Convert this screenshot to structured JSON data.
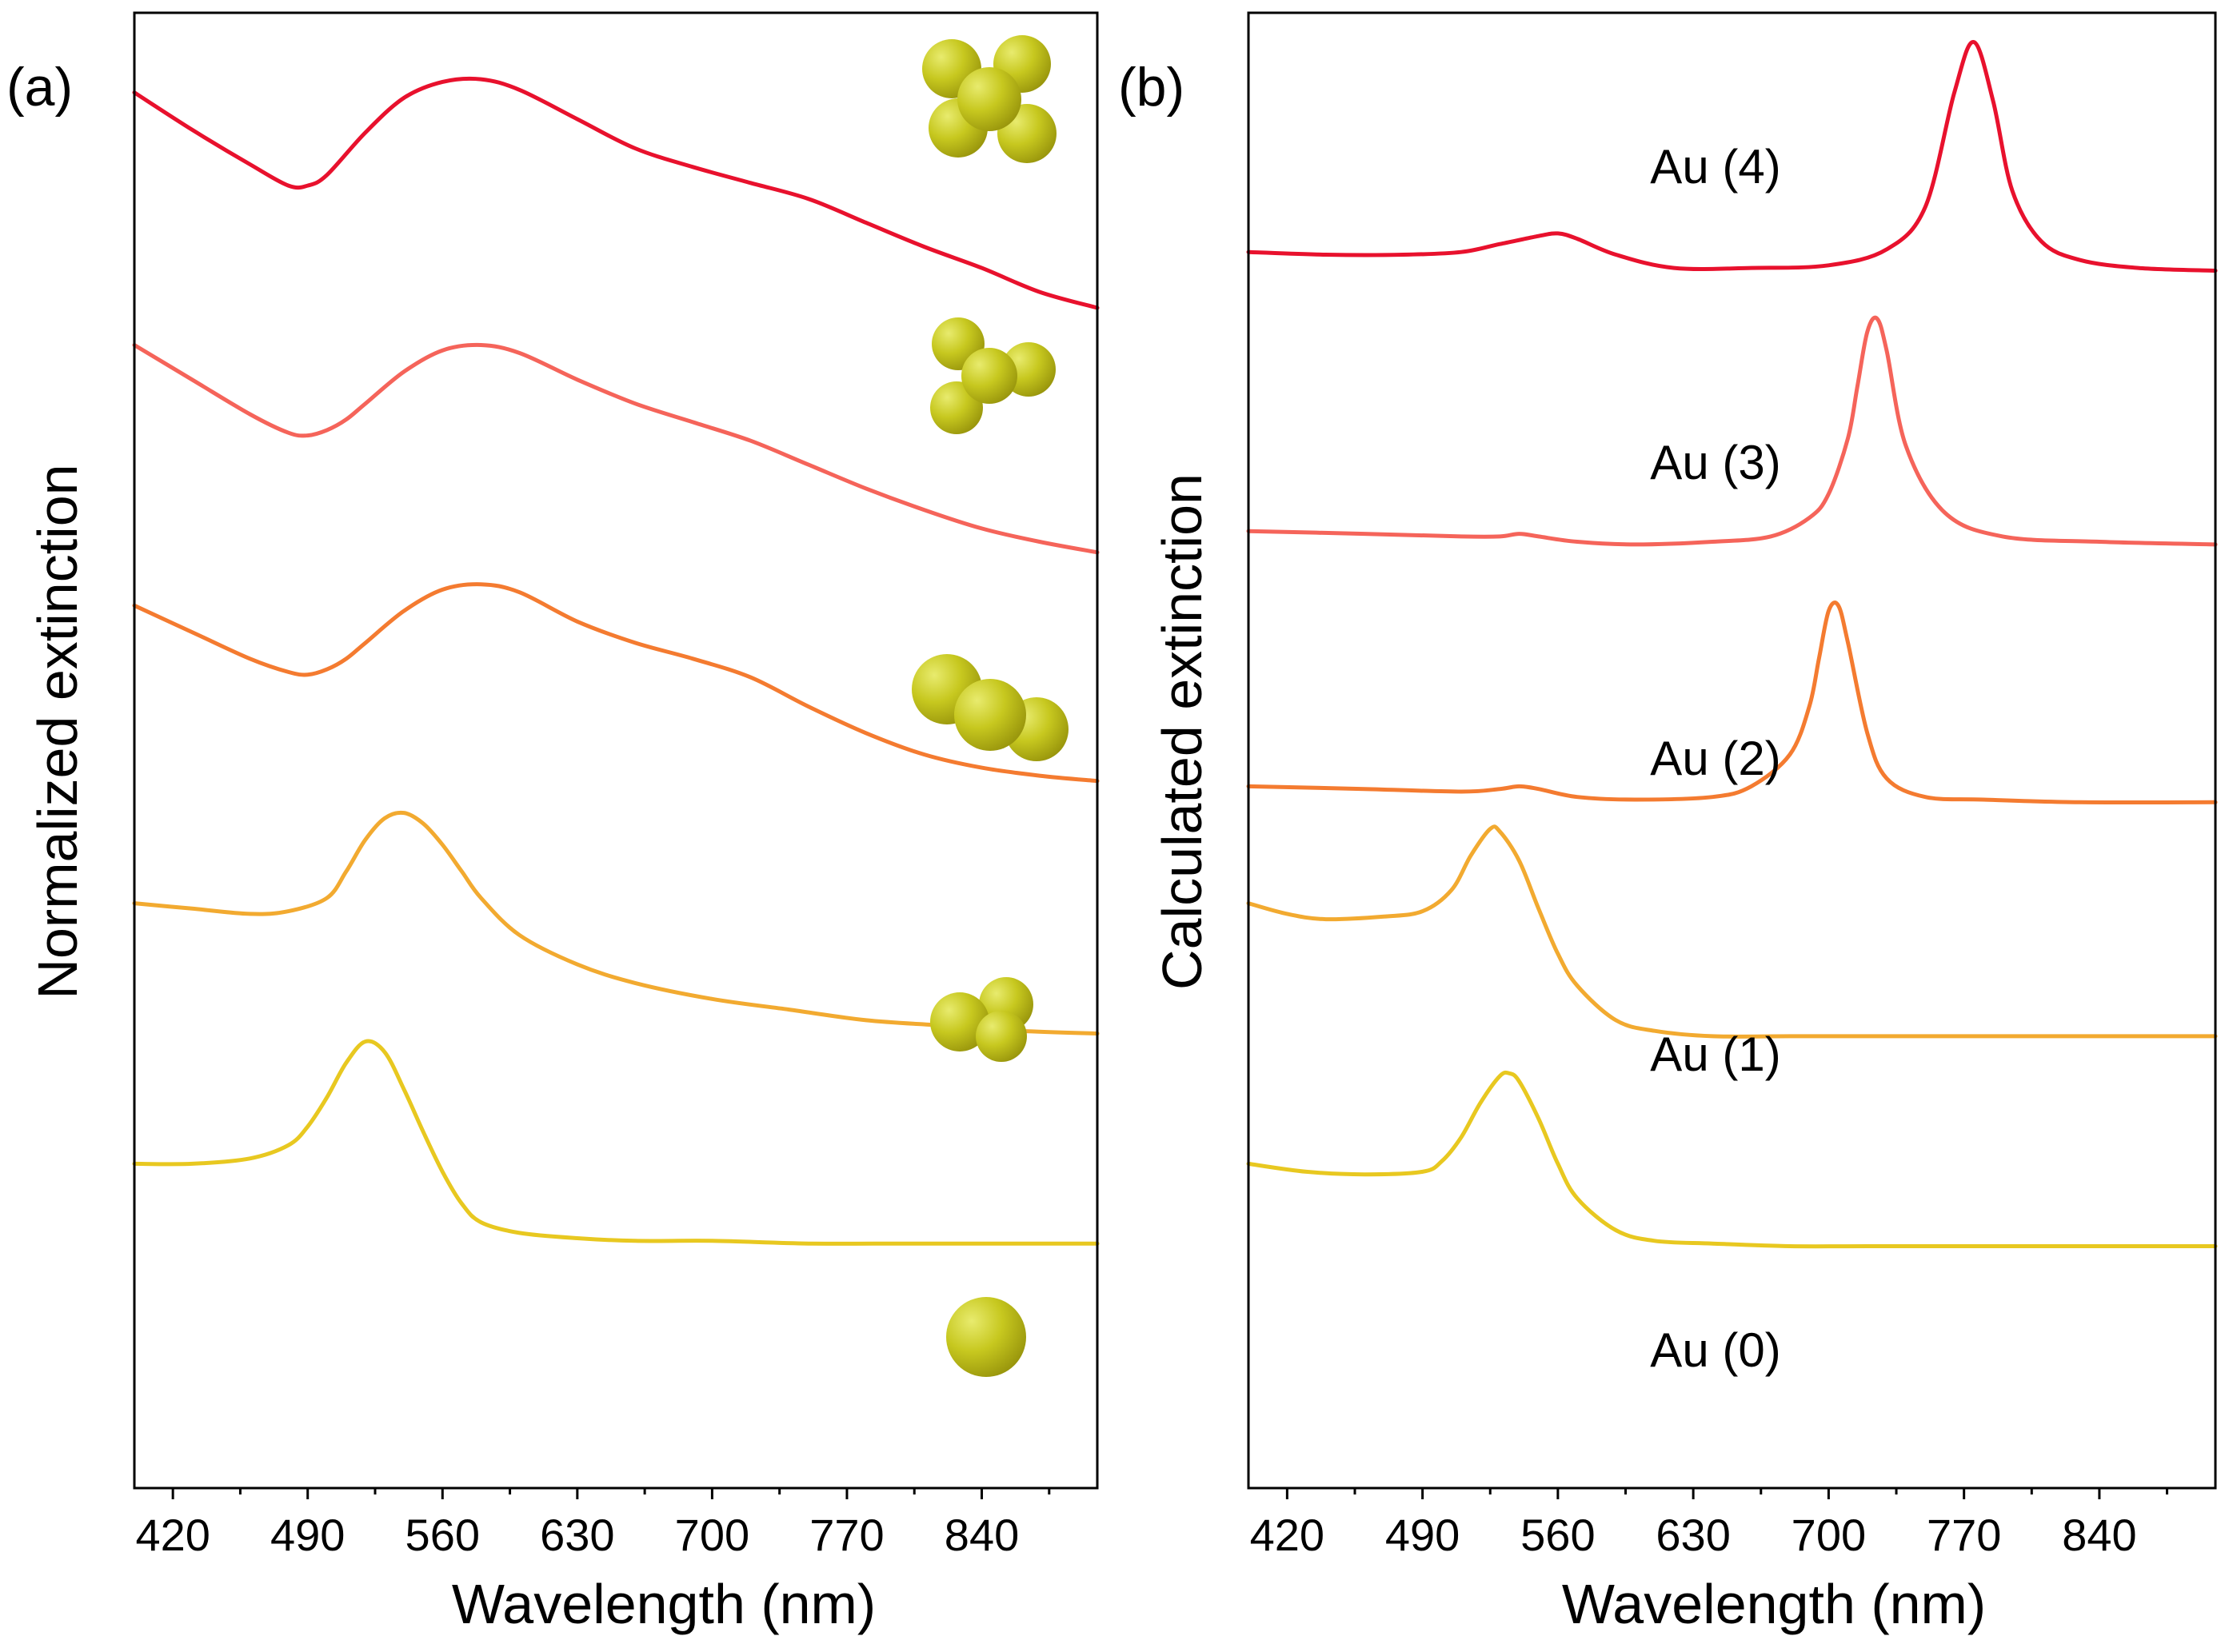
{
  "chart_data": [
    {
      "type": "line",
      "panel_label": "(a)",
      "xlabel": "Wavelength (nm)",
      "ylabel": "Normalized extinction",
      "xlim": [
        400,
        900
      ],
      "xticks": [
        420,
        490,
        560,
        630,
        700,
        770,
        840
      ],
      "x_minor_ticks": [
        455,
        525,
        595,
        665,
        735,
        805,
        875
      ],
      "y_ticks_shown": false,
      "stacked_offset_traces": true,
      "series": [
        {
          "name": "tetramer",
          "color": "#E8112D",
          "x": [
            400,
            430,
            460,
            480,
            490,
            500,
            520,
            540,
            560,
            580,
            600,
            630,
            660,
            690,
            720,
            750,
            780,
            810,
            840,
            870,
            900
          ],
          "y": [
            4.65,
            4.51,
            4.38,
            4.3,
            4.3,
            4.34,
            4.5,
            4.63,
            4.69,
            4.7,
            4.66,
            4.55,
            4.44,
            4.37,
            4.31,
            4.25,
            4.16,
            4.07,
            3.99,
            3.9,
            3.84
          ]
        },
        {
          "name": "trimer",
          "color": "#F5645A",
          "x": [
            400,
            430,
            460,
            480,
            490,
            500,
            510,
            520,
            540,
            560,
            580,
            600,
            630,
            660,
            690,
            720,
            750,
            780,
            810,
            840,
            870,
            900
          ],
          "y": [
            3.7,
            3.57,
            3.44,
            3.37,
            3.36,
            3.38,
            3.42,
            3.48,
            3.6,
            3.68,
            3.7,
            3.67,
            3.57,
            3.48,
            3.41,
            3.34,
            3.25,
            3.16,
            3.08,
            3.01,
            2.96,
            2.92
          ]
        },
        {
          "name": "dimer-extended",
          "color": "#F47B30",
          "x": [
            400,
            430,
            460,
            480,
            490,
            500,
            510,
            520,
            540,
            560,
            580,
            600,
            630,
            660,
            690,
            720,
            750,
            780,
            810,
            840,
            870,
            900
          ],
          "y": [
            2.72,
            2.62,
            2.52,
            2.47,
            2.46,
            2.48,
            2.52,
            2.58,
            2.7,
            2.78,
            2.8,
            2.77,
            2.66,
            2.58,
            2.52,
            2.45,
            2.34,
            2.24,
            2.16,
            2.11,
            2.08,
            2.06
          ]
        },
        {
          "name": "dimer",
          "color": "#F2AA30",
          "x": [
            400,
            430,
            460,
            480,
            500,
            510,
            520,
            530,
            540,
            550,
            560,
            570,
            580,
            600,
            630,
            660,
            700,
            740,
            780,
            820,
            860,
            900
          ],
          "y": [
            1.6,
            1.58,
            1.56,
            1.57,
            1.62,
            1.72,
            1.84,
            1.92,
            1.94,
            1.9,
            1.82,
            1.72,
            1.62,
            1.48,
            1.37,
            1.3,
            1.24,
            1.2,
            1.16,
            1.14,
            1.12,
            1.11
          ]
        },
        {
          "name": "monomer",
          "color": "#E8C820",
          "x": [
            400,
            430,
            460,
            480,
            490,
            500,
            510,
            520,
            530,
            540,
            550,
            560,
            570,
            580,
            600,
            630,
            660,
            700,
            750,
            800,
            850,
            900
          ],
          "y": [
            0.62,
            0.62,
            0.64,
            0.69,
            0.76,
            0.87,
            1.0,
            1.08,
            1.04,
            0.9,
            0.74,
            0.59,
            0.47,
            0.4,
            0.36,
            0.34,
            0.33,
            0.33,
            0.32,
            0.32,
            0.32,
            0.32
          ]
        }
      ]
    },
    {
      "type": "line",
      "panel_label": "(b)",
      "xlabel": "Wavelength (nm)",
      "ylabel": "Calculated extinction",
      "xlim": [
        400,
        900
      ],
      "xticks": [
        420,
        490,
        560,
        630,
        700,
        770,
        840
      ],
      "x_minor_ticks": [
        455,
        525,
        595,
        665,
        735,
        805,
        875
      ],
      "y_ticks_shown": false,
      "stacked_offset_traces": true,
      "series": [
        {
          "name": "Au (4)",
          "color": "#E8112D",
          "x": [
            400,
            440,
            480,
            510,
            530,
            550,
            560,
            570,
            590,
            620,
            660,
            700,
            730,
            750,
            765,
            775,
            785,
            795,
            810,
            830,
            860,
            900
          ],
          "y": [
            4.05,
            4.04,
            4.04,
            4.05,
            4.08,
            4.11,
            4.12,
            4.1,
            4.04,
            3.99,
            3.99,
            4.0,
            4.06,
            4.22,
            4.65,
            4.84,
            4.62,
            4.28,
            4.09,
            4.02,
            3.99,
            3.98
          ]
        },
        {
          "name": "Au (3)",
          "color": "#F5645A",
          "x": [
            400,
            460,
            510,
            530,
            540,
            550,
            570,
            600,
            640,
            670,
            690,
            700,
            710,
            715,
            720,
            725,
            730,
            740,
            760,
            790,
            840,
            900
          ],
          "y": [
            3.0,
            2.99,
            2.98,
            2.98,
            2.99,
            2.98,
            2.96,
            2.95,
            2.96,
            2.98,
            3.05,
            3.14,
            3.35,
            3.55,
            3.75,
            3.8,
            3.68,
            3.32,
            3.07,
            2.98,
            2.96,
            2.95
          ]
        },
        {
          "name": "Au (2)",
          "color": "#F47B30",
          "x": [
            400,
            460,
            510,
            530,
            540,
            550,
            570,
            600,
            640,
            660,
            680,
            690,
            695,
            700,
            705,
            710,
            720,
            730,
            750,
            780,
            830,
            900
          ],
          "y": [
            2.04,
            2.03,
            2.02,
            2.03,
            2.04,
            2.03,
            2.0,
            1.99,
            2.0,
            2.04,
            2.16,
            2.34,
            2.52,
            2.7,
            2.72,
            2.58,
            2.24,
            2.07,
            2.0,
            1.99,
            1.98,
            1.98
          ]
        },
        {
          "name": "Au (1)",
          "color": "#F2AA30",
          "x": [
            400,
            420,
            440,
            470,
            490,
            505,
            515,
            525,
            530,
            540,
            550,
            560,
            570,
            590,
            610,
            640,
            680,
            720,
            780,
            840,
            900
          ],
          "y": [
            1.6,
            1.56,
            1.54,
            1.55,
            1.57,
            1.65,
            1.78,
            1.88,
            1.87,
            1.76,
            1.58,
            1.41,
            1.29,
            1.16,
            1.12,
            1.1,
            1.1,
            1.1,
            1.1,
            1.1,
            1.1
          ]
        },
        {
          "name": "Au (0)",
          "color": "#E8C820",
          "x": [
            400,
            430,
            460,
            490,
            500,
            510,
            520,
            530,
            535,
            540,
            550,
            560,
            570,
            590,
            610,
            640,
            680,
            720,
            780,
            840,
            900
          ],
          "y": [
            0.62,
            0.59,
            0.58,
            0.59,
            0.63,
            0.72,
            0.85,
            0.95,
            0.96,
            0.93,
            0.79,
            0.62,
            0.49,
            0.37,
            0.33,
            0.32,
            0.31,
            0.31,
            0.31,
            0.31,
            0.31
          ]
        }
      ]
    }
  ],
  "icons": [
    "tetramer-cluster-icon",
    "trimer-cluster-icon",
    "dimer-extended-cluster-icon",
    "dimer-cluster-icon",
    "sphere-icon"
  ]
}
